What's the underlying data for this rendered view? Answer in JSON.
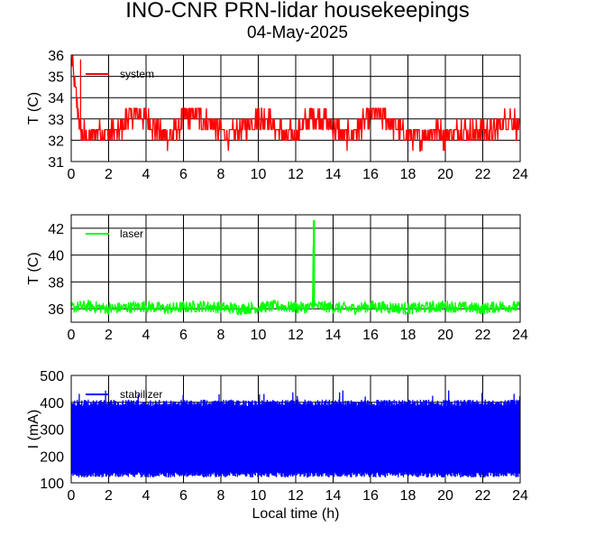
{
  "title": "INO-CNR PRN-lidar housekeepings",
  "subtitle": "04-May-2025",
  "colors": {
    "system": "#ff0000",
    "laser": "#00ff00",
    "stabilizer": "#0000ff",
    "grid": "#000000"
  },
  "chart_data": [
    {
      "type": "line",
      "ylabel": "T (C)",
      "xlabel": "",
      "xlim": [
        0,
        24
      ],
      "ylim": [
        31,
        36
      ],
      "xticks": [
        0,
        2,
        4,
        6,
        8,
        10,
        12,
        14,
        16,
        18,
        20,
        22,
        24
      ],
      "yticks": [
        31,
        32,
        33,
        34,
        35,
        36
      ],
      "grid": true,
      "legend_position": "top-left",
      "series": [
        {
          "name": "system",
          "color": "#ff0000",
          "x": [
            0,
            0.5,
            1,
            1.5,
            2,
            2.5,
            3,
            3.5,
            4,
            4.5,
            5,
            5.5,
            6,
            6.5,
            7,
            7.5,
            8,
            8.5,
            9,
            9.5,
            10,
            10.5,
            11,
            11.5,
            12,
            12.5,
            13,
            13.5,
            14,
            14.5,
            15,
            15.5,
            16,
            16.5,
            17,
            17.5,
            18,
            18.5,
            19,
            19.5,
            20,
            20.5,
            21,
            21.5,
            22,
            22.5,
            23,
            23.5,
            24
          ],
          "y": [
            35.8,
            32.4,
            32.2,
            32.5,
            32.3,
            32.4,
            33.0,
            33.2,
            33.0,
            32.5,
            32.2,
            32.3,
            33.1,
            33.2,
            33.0,
            32.8,
            32.3,
            32.2,
            32.4,
            32.8,
            33.1,
            33.0,
            32.5,
            32.2,
            32.3,
            32.8,
            33.2,
            33.0,
            32.6,
            32.3,
            32.2,
            32.7,
            33.1,
            33.2,
            32.9,
            32.4,
            32.2,
            32.1,
            32.3,
            32.5,
            32.2,
            32.4,
            32.6,
            32.3,
            32.5,
            32.4,
            32.8,
            33.0,
            32.6
          ]
        }
      ]
    },
    {
      "type": "line",
      "ylabel": "T (C)",
      "xlabel": "",
      "xlim": [
        0,
        24
      ],
      "ylim": [
        35,
        43
      ],
      "xticks": [
        0,
        2,
        4,
        6,
        8,
        10,
        12,
        14,
        16,
        18,
        20,
        22,
        24
      ],
      "yticks": [
        36,
        38,
        40,
        42
      ],
      "grid": true,
      "legend_position": "top-left",
      "series": [
        {
          "name": "laser",
          "color": "#00ff00",
          "x": [
            0,
            1,
            2,
            3,
            4,
            5,
            6,
            7,
            8,
            9,
            10,
            11,
            12,
            12.9,
            12.95,
            13.0,
            13.1,
            14,
            15,
            16,
            17,
            18,
            19,
            20,
            21,
            22,
            23,
            24
          ],
          "y": [
            36.1,
            36.2,
            36.0,
            36.1,
            36.2,
            36.0,
            36.1,
            36.2,
            36.1,
            36.0,
            36.1,
            36.2,
            36.1,
            36.1,
            42.6,
            36.1,
            36.2,
            36.1,
            36.0,
            36.2,
            36.1,
            36.0,
            36.1,
            36.2,
            36.1,
            36.0,
            36.2,
            36.1
          ]
        }
      ]
    },
    {
      "type": "line",
      "ylabel": "I (mA)",
      "xlabel": "Local time (h)",
      "xlim": [
        0,
        24
      ],
      "ylim": [
        100,
        500
      ],
      "xticks": [
        0,
        2,
        4,
        6,
        8,
        10,
        12,
        14,
        16,
        18,
        20,
        22,
        24
      ],
      "yticks": [
        100,
        200,
        300,
        400,
        500
      ],
      "grid": true,
      "legend_position": "top-left",
      "series": [
        {
          "name": "stabilizer",
          "color": "#0000ff",
          "band_min": 125,
          "band_max": 410,
          "x": [
            0,
            1.5,
            3,
            4.5,
            6,
            7.5,
            9,
            10.5,
            12,
            13.5,
            15,
            16.5,
            18,
            19.5,
            21,
            22.5,
            24
          ],
          "y": [
            270,
            265,
            268,
            262,
            270,
            266,
            268,
            264,
            270,
            267,
            265,
            269,
            266,
            268,
            264,
            270,
            266
          ]
        }
      ]
    }
  ]
}
